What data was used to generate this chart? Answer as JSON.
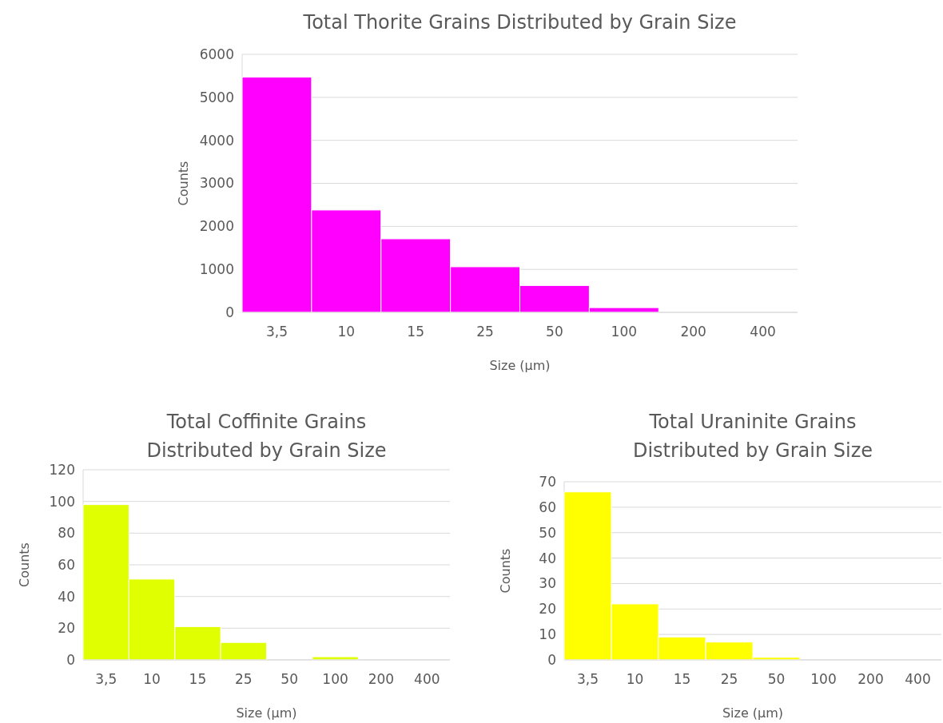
{
  "chart_data": [
    {
      "type": "bar",
      "title": "Total Thorite Grains Distributed by Grain Size",
      "xlabel": "Size (µm)",
      "ylabel": "Counts",
      "categories": [
        "3,5",
        "10",
        "15",
        "25",
        "50",
        "100",
        "200",
        "400"
      ],
      "values": [
        5470,
        2380,
        1710,
        1060,
        625,
        110,
        0,
        0
      ],
      "color": "#ff00ff",
      "ylim": [
        0,
        6000
      ],
      "yticks": [
        0,
        1000,
        2000,
        3000,
        4000,
        5000,
        6000
      ],
      "grid": "y"
    },
    {
      "type": "bar",
      "title": "Total Coffinite Grains Distributed by Grain Size",
      "xlabel": "Size (µm)",
      "ylabel": "Counts",
      "categories": [
        "3,5",
        "10",
        "15",
        "25",
        "50",
        "100",
        "200",
        "400"
      ],
      "values": [
        98,
        51,
        21,
        11,
        0,
        2,
        0,
        0
      ],
      "color": "#e0ff00",
      "ylim": [
        0,
        120
      ],
      "yticks": [
        0,
        20,
        40,
        60,
        80,
        100,
        120
      ],
      "grid": "y"
    },
    {
      "type": "bar",
      "title": "Total Uraninite Grains Distributed by Grain Size",
      "xlabel": "Size (µm)",
      "ylabel": "Counts",
      "categories": [
        "3,5",
        "10",
        "15",
        "25",
        "50",
        "100",
        "200",
        "400"
      ],
      "values": [
        66,
        22,
        9,
        7,
        1,
        0,
        0,
        0
      ],
      "color": "#ffff00",
      "ylim": [
        0,
        70
      ],
      "yticks": [
        0,
        10,
        20,
        30,
        40,
        50,
        60,
        70
      ],
      "grid": "y"
    }
  ]
}
